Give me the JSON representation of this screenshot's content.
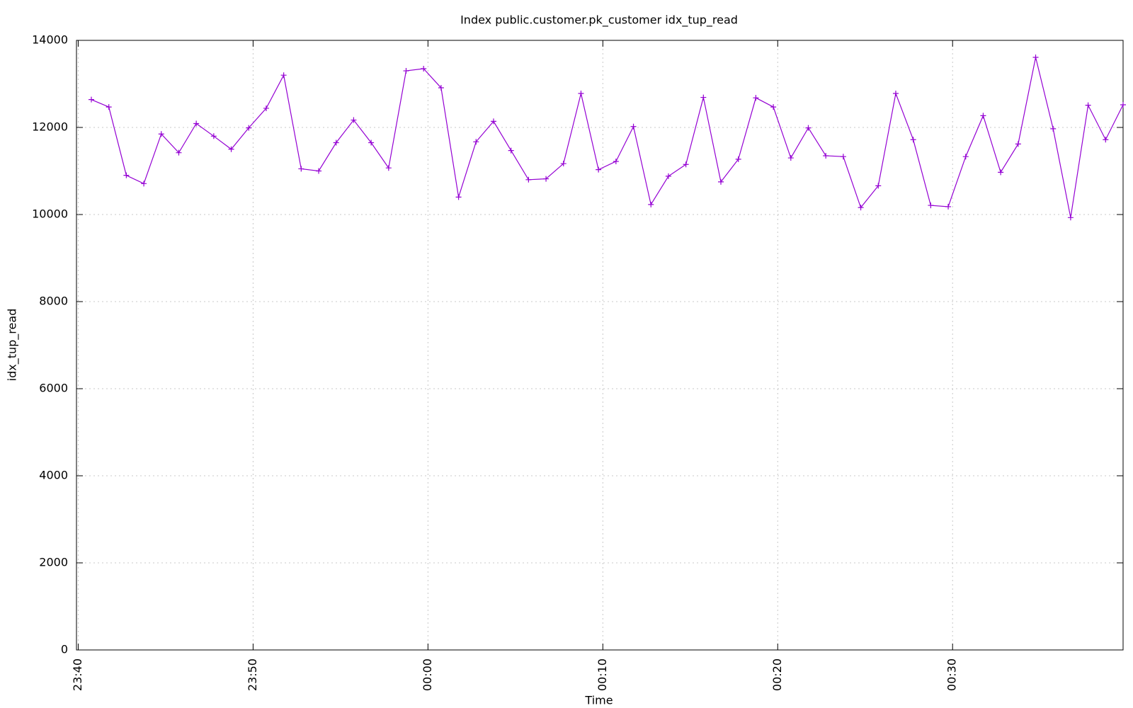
{
  "chart_data": {
    "type": "line",
    "title": "Index public.customer.pk_customer idx_tup_read",
    "x_label": "Time",
    "y_label": "idx_tup_read",
    "x": [
      1420.75,
      1421.75,
      1422.75,
      1423.75,
      1424.75,
      1425.75,
      1426.75,
      1427.75,
      1428.75,
      1429.75,
      1430.75,
      1431.75,
      1432.75,
      1433.75,
      1434.75,
      1435.75,
      1436.75,
      1437.75,
      1438.75,
      1439.75,
      1440.75,
      1441.75,
      1442.75,
      1443.75,
      1444.75,
      1445.75,
      1446.75,
      1447.75,
      1448.75,
      1449.75,
      1450.75,
      1451.75,
      1452.75,
      1453.75,
      1454.75,
      1455.75,
      1456.75,
      1457.75,
      1458.75,
      1459.75,
      1460.75,
      1461.75,
      1462.75,
      1463.75,
      1464.75,
      1465.75,
      1466.75,
      1467.75,
      1468.75,
      1469.75,
      1470.75,
      1471.75,
      1472.75,
      1473.75,
      1474.75,
      1475.75,
      1476.75,
      1477.75,
      1478.75,
      1479.75
    ],
    "values": [
      12640,
      12470,
      10900,
      10710,
      11850,
      11420,
      12090,
      11800,
      11500,
      11990,
      12440,
      13200,
      11050,
      11000,
      11650,
      12170,
      11650,
      11070,
      13300,
      13350,
      12910,
      10400,
      11670,
      12140,
      11470,
      10800,
      10820,
      11170,
      12780,
      11030,
      11220,
      12020,
      10230,
      10880,
      11150,
      12690,
      10750,
      11270,
      12680,
      12470,
      11300,
      11990,
      11350,
      11330,
      10160,
      10660,
      12780,
      11720,
      10210,
      10180,
      11330,
      12270,
      10970,
      11620,
      13610,
      11970,
      9930,
      12510,
      11720,
      12520
    ],
    "color": "#9400d3",
    "xlim": [
      1419.9,
      1479.75
    ],
    "xticks": [
      {
        "value": 1420,
        "label": "23:40"
      },
      {
        "value": 1430,
        "label": "23:50"
      },
      {
        "value": 1440,
        "label": "00:00"
      },
      {
        "value": 1450,
        "label": "00:10"
      },
      {
        "value": 1460,
        "label": "00:20"
      },
      {
        "value": 1470,
        "label": "00:30"
      }
    ],
    "ylim": [
      0,
      14000
    ],
    "yticks": [
      0,
      2000,
      4000,
      6000,
      8000,
      10000,
      12000,
      14000
    ],
    "grid": true
  }
}
